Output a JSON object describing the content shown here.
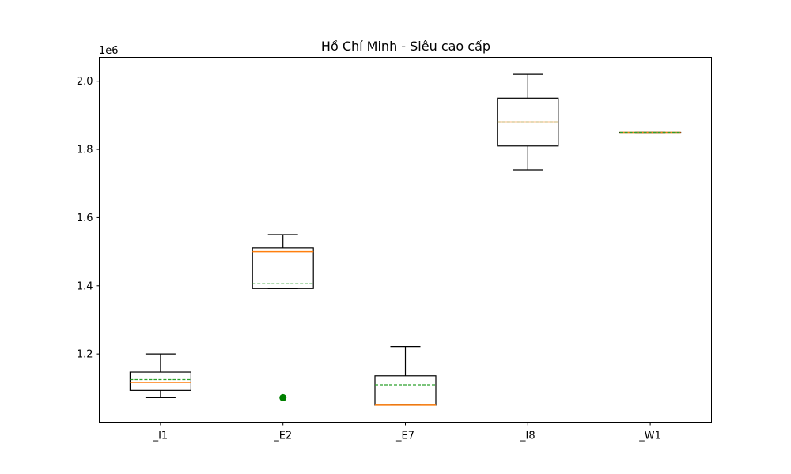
{
  "chart_data": {
    "type": "box",
    "title": "Hồ Chí Minh - Siêu cao cấp",
    "xlabel": "",
    "ylabel": "",
    "y_offset_label": "1e6",
    "ylim": [
      1000000,
      2070000
    ],
    "yticks": [
      {
        "value": 1200000,
        "label": "1.2"
      },
      {
        "value": 1400000,
        "label": "1.4"
      },
      {
        "value": 1600000,
        "label": "1.6"
      },
      {
        "value": 1800000,
        "label": "1.8"
      },
      {
        "value": 2000000,
        "label": "2.0"
      }
    ],
    "categories": [
      "_I1",
      "_E2",
      "_E7",
      "_I8",
      "_W1"
    ],
    "boxes": [
      {
        "category": "_I1",
        "whisker_low": 1072000,
        "q1": 1093000,
        "median": 1117000,
        "mean": 1125000,
        "q3": 1147000,
        "whisker_high": 1200000,
        "outliers": []
      },
      {
        "category": "_E2",
        "whisker_low": 1392000,
        "q1": 1392000,
        "median": 1500000,
        "mean": 1406000,
        "q3": 1511000,
        "whisker_high": 1550000,
        "outliers": [
          1072000
        ]
      },
      {
        "category": "_E7",
        "whisker_low": 1050000,
        "q1": 1050000,
        "median": 1050000,
        "mean": 1110000,
        "q3": 1136000,
        "whisker_high": 1222000,
        "outliers": []
      },
      {
        "category": "_I8",
        "whisker_low": 1740000,
        "q1": 1810000,
        "median": 1880000,
        "mean": 1880000,
        "q3": 1950000,
        "whisker_high": 2020000,
        "outliers": []
      },
      {
        "category": "_W1",
        "whisker_low": 1850000,
        "q1": 1850000,
        "median": 1850000,
        "mean": 1850000,
        "q3": 1850000,
        "whisker_high": 1850000,
        "outliers": []
      }
    ],
    "grid": false,
    "colors": {
      "box": "#000000",
      "median": "#ff7f0e",
      "mean": "#2ca02c",
      "outlier": "#008000"
    }
  }
}
